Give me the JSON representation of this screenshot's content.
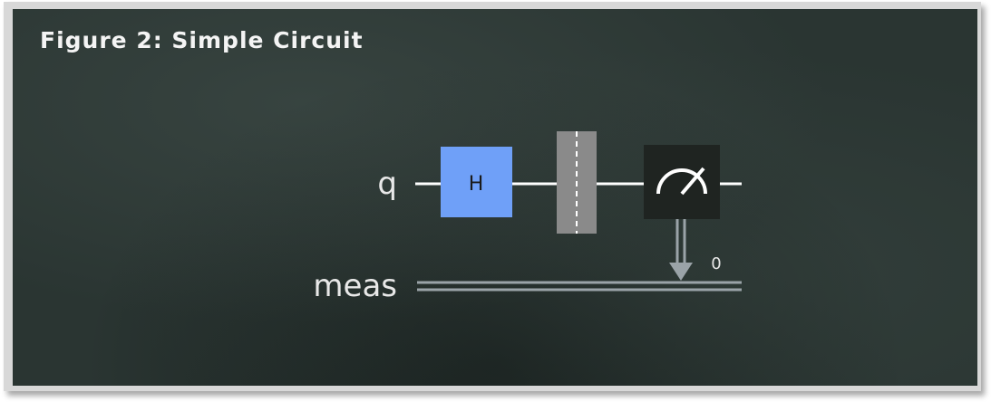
{
  "figure": {
    "title": "Figure 2: Simple Circuit"
  },
  "circuit": {
    "qubit_label": "q",
    "classical_label": "meas",
    "classical_bit_index": "0",
    "gate_label": "H",
    "colors": {
      "gate_fill": "#6fa0f8",
      "barrier_fill": "#8a8a8a",
      "measure_fill": "#1f2421",
      "wire": "#ffffff",
      "classical_wire": "#9aa3a8",
      "board": "#2a3532"
    },
    "elements": [
      "hadamard-gate",
      "barrier",
      "measurement",
      "classical-register"
    ]
  }
}
